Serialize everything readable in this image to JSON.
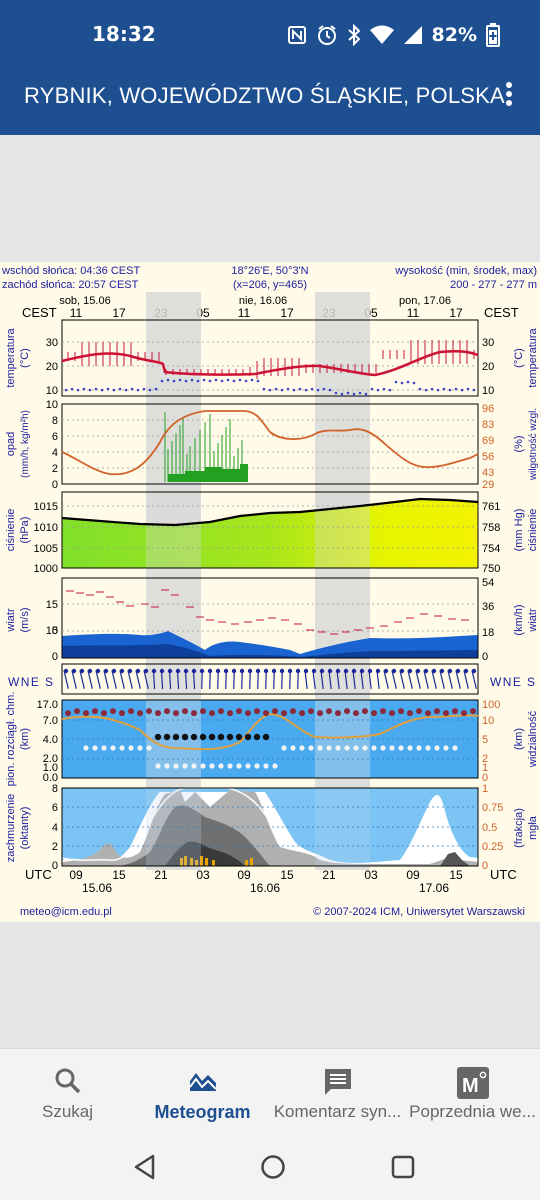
{
  "status_bar": {
    "time": "18:32",
    "battery": "82%",
    "icons": [
      "nfc-icon",
      "alarm-icon",
      "bluetooth-icon",
      "wifi-icon",
      "signal-icon",
      "battery-icon"
    ]
  },
  "app_bar": {
    "title": "RYBNIK, WOJEWÓDZTWO ŚLĄSKIE, POLSKA",
    "menu_icon": "more-vert-icon"
  },
  "meteogram": {
    "sunrise": "wschód słońca: 04:36 CEST",
    "sunset": "zachód słońca: 20:57 CEST",
    "coords": "18°26'E, 50°3'N",
    "grid": "(x=206, y=465)",
    "elevation_label": "wysokość (min, środek, max)",
    "elevation_values": "200 - 277 - 277 m",
    "cest": "CEST",
    "utc": "UTC",
    "day_labels_top": [
      "sob, 15.06",
      "nie, 16.06",
      "pon, 17.06"
    ],
    "hours_cest": [
      "11",
      "17",
      "23",
      "05",
      "11",
      "17",
      "23",
      "05",
      "11",
      "17"
    ],
    "hours_utc": [
      "09",
      "15",
      "21",
      "03",
      "09",
      "15",
      "21",
      "03",
      "09",
      "15"
    ],
    "dates_bottom": [
      "15.06",
      "16.06",
      "17.06"
    ],
    "panels": {
      "temperature": {
        "left": "temperatura",
        "left_unit": "(°C)",
        "right_unit": "(°C)",
        "right": "temperatura",
        "ticks_left": [
          "30",
          "20",
          "10"
        ],
        "ticks_right": [
          "30",
          "20",
          "10"
        ]
      },
      "precip": {
        "left": "opad",
        "left_unit": "(mm/h, kg/m²h)",
        "right": "wilgotność wzgl.",
        "right_unit": "(%)",
        "ticks_left": [
          "10",
          "8",
          "6",
          "4",
          "2",
          "0"
        ],
        "ticks_right": [
          "96",
          "83",
          "69",
          "56",
          "43",
          "29"
        ]
      },
      "pressure": {
        "left": "ciśnienie",
        "left_unit": "(hPa)",
        "right": "ciśnienie",
        "right_unit": "(mm Hg)",
        "ticks_left": [
          "1015",
          "1010",
          "1005",
          "1000"
        ],
        "ticks_right": [
          "761",
          "758",
          "754",
          "750"
        ]
      },
      "wind": {
        "left": "wiatr",
        "left_unit": "(m/s)",
        "right": "wiatr",
        "right_unit": "(km/h)",
        "ticks_left": [
          "15",
          "10",
          "5",
          "0"
        ],
        "ticks_right": [
          "54",
          "36",
          "18",
          "0"
        ]
      },
      "wind_dir": {
        "compass": "WNE S"
      },
      "visibility": {
        "left": "pion. rozciągł. chm.",
        "left_unit": "(km)",
        "right": "widzialność",
        "right_unit": "(km)",
        "ticks_left": [
          "17.0",
          "7.0",
          "4.0",
          "2.0",
          "1.0",
          "0.0"
        ],
        "ticks_right": [
          "100",
          "10",
          "5",
          "2",
          "1",
          "0"
        ]
      },
      "clouds": {
        "left": "zachmurzenie",
        "left_unit": "(oktanty)",
        "right": "mgła",
        "right_unit": "(frakcja)",
        "ticks_left": [
          "8",
          "6",
          "4",
          "2",
          "0"
        ],
        "ticks_right": [
          "1",
          "0.75",
          "0.5",
          "0.25",
          "0"
        ]
      }
    },
    "footer_left": "meteo@icm.edu.pl",
    "footer_right": "© 2007-2024 ICM, Uniwersytet Warszawski",
    "colors": {
      "temp_line": "#cc1133",
      "humidity_line": "#d2622a",
      "precip_bars": "#22a022",
      "pressure_line": "#000000",
      "wind_fill": "#1a64d2",
      "visibility_bg": "#4aaaf0",
      "cloud_bg": "#7cc4f4"
    }
  },
  "bottom_nav": {
    "items": [
      {
        "label": "Szukaj",
        "icon": "search-icon",
        "active": false
      },
      {
        "label": "Meteogram",
        "icon": "meteogram-icon",
        "active": true
      },
      {
        "label": "Komentarz syn...",
        "icon": "comment-icon",
        "active": false
      },
      {
        "label": "Poprzednia we...",
        "icon": "previous-meteogram-icon",
        "active": false
      }
    ]
  },
  "system_nav": {
    "buttons": [
      "back-icon",
      "home-icon",
      "recents-icon"
    ]
  }
}
